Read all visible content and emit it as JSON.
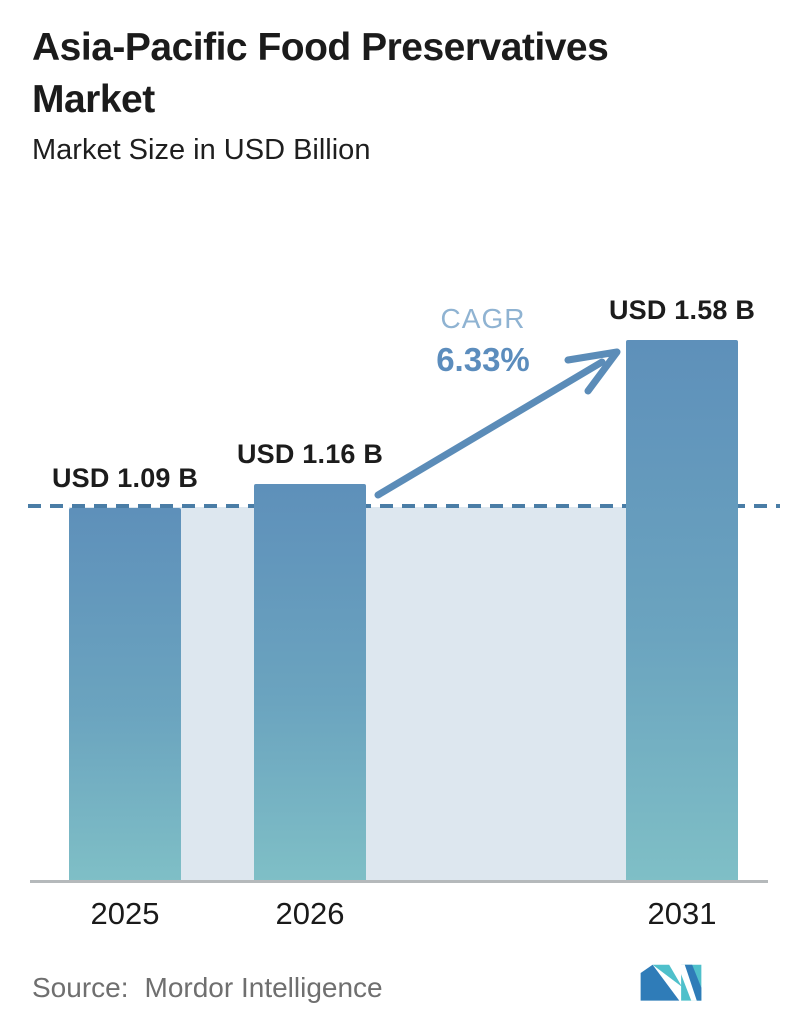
{
  "chart_data": {
    "type": "bar",
    "title": "Asia-Pacific Food Preservatives Market",
    "subtitle": "Market Size in USD Billion",
    "categories": [
      "2025",
      "2026",
      "2031"
    ],
    "values": [
      1.09,
      1.16,
      1.58
    ],
    "value_labels": [
      "USD 1.09 B",
      "USD 1.16 B",
      "USD 1.58 B"
    ],
    "ylim": [
      0,
      1.58
    ],
    "grid": false,
    "legend": false,
    "reference_line_value": 1.09,
    "annotation": {
      "cagr_label": "CAGR",
      "cagr_value": "6.33%"
    }
  },
  "footer": {
    "source_label": "Source:",
    "source_name": "Mordor Intelligence",
    "logo_name": "mordor-intelligence-logo"
  },
  "colors": {
    "bar_top": "#5e90ba",
    "bar_bottom": "#7fbfc6",
    "panel_fill": "#dde7ef",
    "dashed_line": "#4a7da6",
    "arrow": "#5b8cb8",
    "cagr_label_text": "#8fb3d2",
    "cagr_value_text": "#5c8dbd",
    "axis_line": "#b5b9bb",
    "title_text": "#1b1b1b",
    "source_text": "#6f6f6f",
    "logo_blue": "#2f7cb8",
    "logo_teal": "#4fc0cb"
  }
}
